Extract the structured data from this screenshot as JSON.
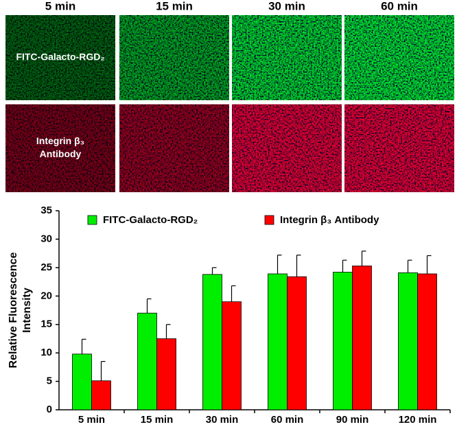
{
  "panels": {
    "columns": [
      "5 min",
      "15 min",
      "30 min",
      "60 min"
    ],
    "rows": [
      [
        "FITC-Galacto-RGD₂"
      ],
      [
        "Integrin β₃",
        "Antibody"
      ]
    ]
  },
  "chart_data": {
    "type": "bar",
    "ylabel": [
      "Relative Fluorescence",
      "Intensity"
    ],
    "categories": [
      "5 min",
      "15 min",
      "30 min",
      "60 min",
      "90 min",
      "120 min"
    ],
    "series": [
      {
        "name": "FITC-Galacto-RGD₂",
        "color": "#00ee00",
        "values": [
          9.8,
          17,
          23.8,
          23.9,
          24.2,
          24.1
        ],
        "errors": [
          2.6,
          2.5,
          1.2,
          3.3,
          2.1,
          2.2
        ]
      },
      {
        "name": "Integrin β₃ Antibody",
        "color": "#ff0000",
        "values": [
          5.1,
          12.5,
          19,
          23.4,
          25.3,
          23.9
        ],
        "errors": [
          3.4,
          2.5,
          2.8,
          3.8,
          2.6,
          3.2
        ]
      }
    ],
    "ylim": [
      0,
      35
    ],
    "yticks": [
      0,
      5,
      10,
      15,
      20,
      25,
      30,
      35
    ]
  }
}
